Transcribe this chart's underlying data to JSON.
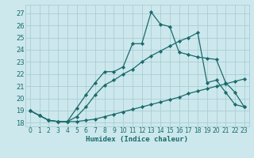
{
  "xlabel": "Humidex (Indice chaleur)",
  "xlim": [
    -0.5,
    23.5
  ],
  "ylim": [
    17.7,
    27.7
  ],
  "yticks": [
    18,
    19,
    20,
    21,
    22,
    23,
    24,
    25,
    26,
    27
  ],
  "xticks": [
    0,
    1,
    2,
    3,
    4,
    5,
    6,
    7,
    8,
    9,
    10,
    11,
    12,
    13,
    14,
    15,
    16,
    17,
    18,
    19,
    20,
    21,
    22,
    23
  ],
  "bg_color": "#cce8ed",
  "grid_color": "#aacdd4",
  "line_color": "#1a6b6b",
  "line1_x": [
    0,
    1,
    2,
    3,
    4,
    5,
    6,
    7,
    8,
    9,
    10,
    11,
    12,
    13,
    14,
    15,
    16,
    17,
    18,
    19,
    20,
    21,
    22,
    23
  ],
  "line1_y": [
    19.0,
    18.6,
    18.2,
    18.1,
    18.1,
    18.1,
    18.2,
    18.3,
    18.5,
    18.7,
    18.9,
    19.1,
    19.3,
    19.5,
    19.7,
    19.9,
    20.1,
    20.4,
    20.6,
    20.8,
    21.0,
    21.2,
    21.4,
    21.6
  ],
  "line2_x": [
    0,
    1,
    2,
    3,
    4,
    5,
    6,
    7,
    8,
    9,
    10,
    11,
    12,
    13,
    14,
    15,
    16,
    17,
    18,
    19,
    20,
    21,
    22,
    23
  ],
  "line2_y": [
    19.0,
    18.6,
    18.2,
    18.1,
    18.1,
    18.5,
    19.3,
    20.3,
    21.1,
    21.5,
    22.0,
    22.4,
    23.0,
    23.5,
    23.9,
    24.3,
    24.7,
    25.0,
    25.4,
    21.3,
    21.5,
    20.5,
    19.5,
    19.3
  ],
  "line3_x": [
    0,
    1,
    2,
    3,
    4,
    5,
    6,
    7,
    8,
    9,
    10,
    11,
    12,
    13,
    14,
    15,
    16,
    17,
    18,
    19,
    20,
    21,
    22,
    23
  ],
  "line3_y": [
    19.0,
    18.6,
    18.2,
    18.1,
    18.1,
    19.2,
    20.3,
    21.3,
    22.2,
    22.2,
    22.6,
    24.5,
    24.5,
    27.1,
    26.1,
    25.9,
    23.8,
    23.6,
    23.4,
    23.3,
    23.2,
    21.3,
    20.5,
    19.3
  ]
}
